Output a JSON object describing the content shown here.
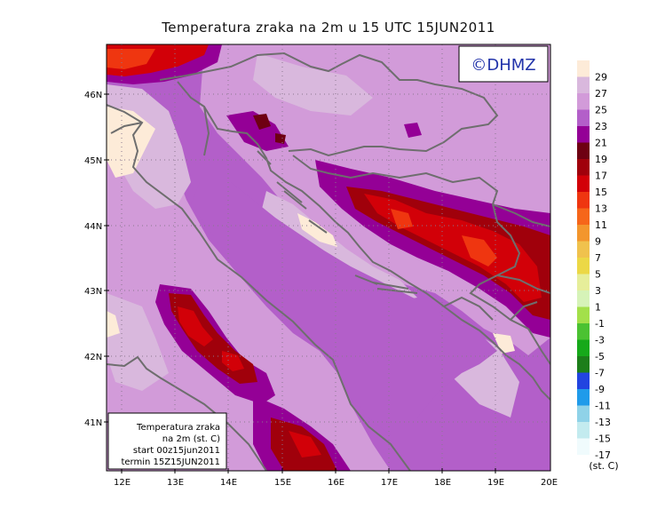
{
  "title": "Temperatura zraka na 2m u 15 UTC 15JUN2011",
  "logo": "©DHMZ",
  "info_box": {
    "line1": "Temperatura zraka",
    "line2": "na 2m (st. C)",
    "line3": "start 00z15jun2011",
    "line4": "termin 15Z15JUN2011"
  },
  "lat_labels": [
    "46N",
    "45N",
    "44N",
    "43N",
    "42N",
    "41N"
  ],
  "lon_labels": [
    "12E",
    "13E",
    "14E",
    "15E",
    "16E",
    "17E",
    "18E",
    "19E",
    "20E"
  ],
  "colorbar": {
    "unit": "(st. C)",
    "labels": [
      "29",
      "27",
      "25",
      "23",
      "21",
      "19",
      "17",
      "15",
      "13",
      "11",
      "9",
      "7",
      "5",
      "3",
      "1",
      "-1",
      "-3",
      "-5",
      "-7",
      "-9",
      "-11",
      "-13",
      "-15",
      "-17"
    ],
    "colors": [
      "#fdebd8",
      "#d9b8dd",
      "#d29bd9",
      "#b35fc9",
      "#940096",
      "#6e0012",
      "#a0000b",
      "#d20008",
      "#ef3610",
      "#f6661a",
      "#f3962d",
      "#f0c24d",
      "#ecd846",
      "#e6ee9a",
      "#d6f3b8",
      "#a3e04a",
      "#4bc232",
      "#16a91a",
      "#1c7e1a",
      "#2244e0",
      "#1f9bea",
      "#8fd2e8",
      "#c3ebef",
      "#f0fbfd"
    ]
  },
  "field_colors": {
    "t29": "#fdebd8",
    "t27": "#d9b8dd",
    "t25": "#d29bd9",
    "t23": "#b35fc9",
    "t21": "#940096",
    "t19": "#6e0012",
    "t17": "#a0000b",
    "t15": "#d20008",
    "t13": "#ef3610",
    "coast": "#6e6e6e",
    "grid": "#8a7890",
    "logo_text": "#2233aa"
  }
}
